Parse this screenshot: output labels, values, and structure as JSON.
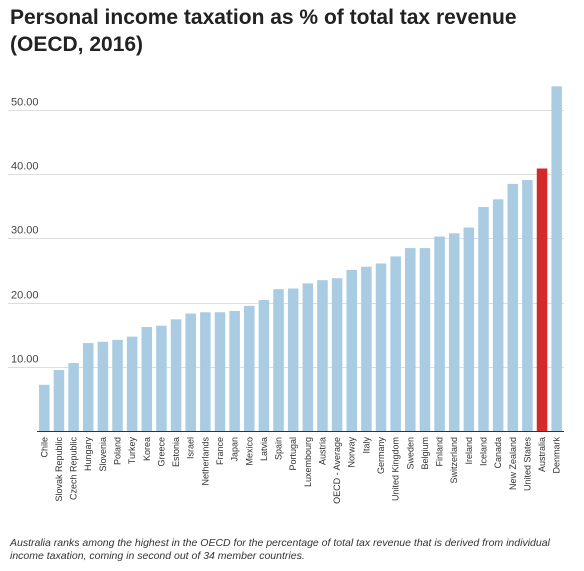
{
  "title": "Personal income taxation as % of total tax revenue (OECD, 2016)",
  "caption": "Australia ranks among the highest in the OECD for the percentage of total tax revenue that is derived from individual income taxation, coming in second out of 34 member countries.",
  "colors": {
    "default_bar": "#a9cce3",
    "highlight_bar": "#d42a2a",
    "gridline": "#dddddd",
    "axis": "#333333",
    "text": "#444444"
  },
  "chart_data": {
    "type": "bar",
    "title": "Personal income taxation as % of total tax revenue (OECD, 2016)",
    "xlabel": "",
    "ylabel": "",
    "ylim": [
      0,
      55
    ],
    "yticks": [
      10,
      20,
      30,
      40,
      50
    ],
    "ytick_labels": [
      "10.00",
      "20.00",
      "30.00",
      "40.00",
      "50.00"
    ],
    "grid": true,
    "highlight": "Australia",
    "categories": [
      "Chile",
      "Slovak Republic",
      "Czech Republic",
      "Hungary",
      "Slovenia",
      "Poland",
      "Turkey",
      "Korea",
      "Greece",
      "Estonia",
      "Israel",
      "Netherlands",
      "France",
      "Japan",
      "Mexico",
      "Latvia",
      "Spain",
      "Portugal",
      "Luxembourg",
      "Austria",
      "OECD - Average",
      "Norway",
      "Italy",
      "Germany",
      "United Kingdom",
      "Sweden",
      "Belgium",
      "Finland",
      "Switzerland",
      "Ireland",
      "Iceland",
      "Canada",
      "New Zealand",
      "United States",
      "Australia",
      "Denmark"
    ],
    "values": [
      7.2,
      9.5,
      10.6,
      13.7,
      13.9,
      14.2,
      14.7,
      16.2,
      16.4,
      17.4,
      18.3,
      18.5,
      18.5,
      18.7,
      19.5,
      20.4,
      22.1,
      22.2,
      23.0,
      23.5,
      23.8,
      25.1,
      25.6,
      26.1,
      27.2,
      28.5,
      28.5,
      30.3,
      30.8,
      31.7,
      34.9,
      36.1,
      38.5,
      39.1,
      40.9,
      53.7
    ]
  }
}
